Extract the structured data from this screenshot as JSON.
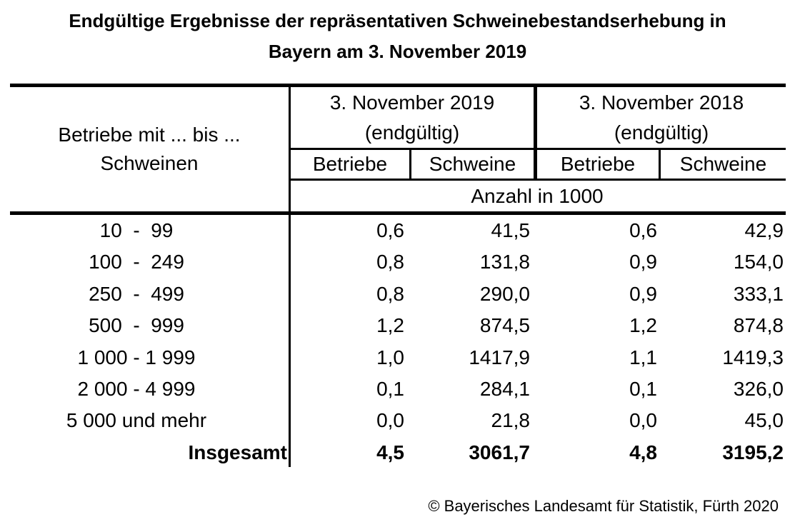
{
  "colors": {
    "text": "#000000",
    "background": "#ffffff"
  },
  "title": {
    "line1": "Endgültige Ergebnisse der repräsentativen Schweinebestandserhebung in",
    "line2": "Bayern am 3. November 2019"
  },
  "table": {
    "col1_header": {
      "line1": "Betriebe mit ... bis ...",
      "line2": "Schweinen"
    },
    "groups": [
      {
        "date": "3. November 2019",
        "note": "(endgültig)"
      },
      {
        "date": "3. November 2018",
        "note": "(endgültig)"
      }
    ],
    "sub_headers": [
      "Betriebe",
      "Schweine",
      "Betriebe",
      "Schweine"
    ],
    "unit_label": "Anzahl in 1000",
    "rows": [
      {
        "range": "10  -  99",
        "values": [
          "0,6",
          "41,5",
          "0,6",
          "42,9"
        ]
      },
      {
        "range": "100  -  249",
        "values": [
          "0,8",
          "131,8",
          "0,9",
          "154,0"
        ]
      },
      {
        "range": "250  -  499",
        "values": [
          "0,8",
          "290,0",
          "0,9",
          "333,1"
        ]
      },
      {
        "range": "500  -  999",
        "values": [
          "1,2",
          "874,5",
          "1,2",
          "874,8"
        ]
      },
      {
        "range": "1 000 - 1 999",
        "values": [
          "1,0",
          "1417,9",
          "1,1",
          "1419,3"
        ]
      },
      {
        "range": "2 000 - 4 999",
        "values": [
          "0,1",
          "284,1",
          "0,1",
          "326,0"
        ]
      },
      {
        "range": "5 000 und mehr",
        "values": [
          "0,0",
          "21,8",
          "0,0",
          "45,0"
        ]
      },
      {
        "range": "Insgesamt",
        "values": [
          "4,5",
          "3061,7",
          "4,8",
          "3195,2"
        ]
      }
    ]
  },
  "footer": {
    "copyright": "© Bayerisches Landesamt für Statistik, Fürth 2020"
  }
}
